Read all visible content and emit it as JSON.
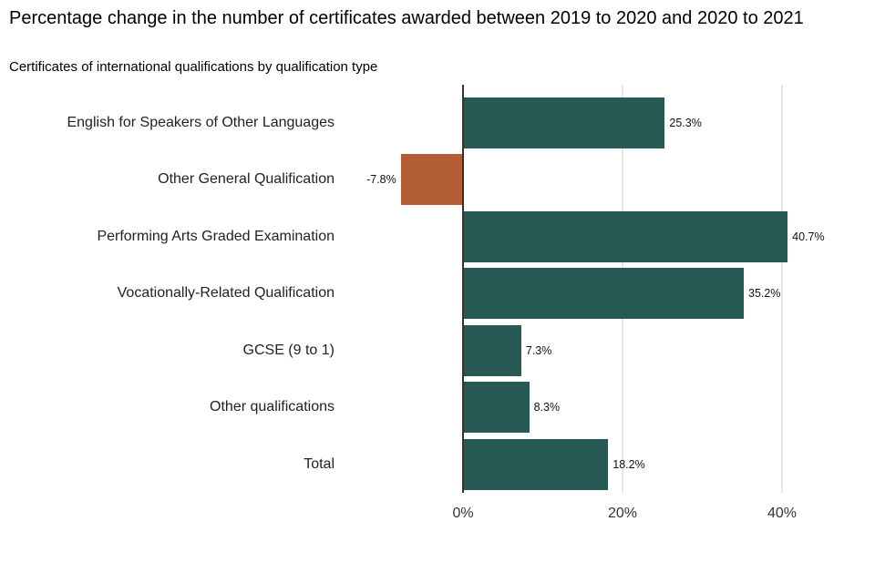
{
  "header": {
    "title": "Percentage change in the number of certificates awarded between 2019 to 2020 and 2020 to 2021",
    "subtitle": "Certificates of international qualifications by qualification type"
  },
  "colors": {
    "positive": "#275a55",
    "negative": "#b25d33",
    "grid": "#e6e6e6",
    "axis": "#333333"
  },
  "axis": {
    "ticks": [
      "0%",
      "20%",
      "40%"
    ]
  },
  "rows": [
    {
      "label": "English for Speakers of Other Languages",
      "value": 25.3,
      "value_label": "25.3%"
    },
    {
      "label": "Other General Qualification",
      "value": -7.8,
      "value_label": "-7.8%"
    },
    {
      "label": "Performing Arts Graded Examination",
      "value": 40.7,
      "value_label": "40.7%"
    },
    {
      "label": "Vocationally-Related Qualification",
      "value": 35.2,
      "value_label": "35.2%"
    },
    {
      "label": "GCSE (9 to 1)",
      "value": 7.3,
      "value_label": "7.3%"
    },
    {
      "label": "Other qualifications",
      "value": 8.3,
      "value_label": "8.3%"
    },
    {
      "label": "Total",
      "value": 18.2,
      "value_label": "18.2%"
    }
  ],
  "chart_data": {
    "type": "bar",
    "orientation": "horizontal",
    "title": "Percentage change in the number of certificates awarded between 2019 to 2020 and 2020 to 2021",
    "subtitle": "Certificates of international qualifications by qualification type",
    "categories": [
      "English for Speakers of Other Languages",
      "Other General Qualification",
      "Performing Arts Graded Examination",
      "Vocationally-Related Qualification",
      "GCSE (9 to 1)",
      "Other qualifications",
      "Total"
    ],
    "values": [
      25.3,
      -7.8,
      40.7,
      35.2,
      7.3,
      8.3,
      18.2
    ],
    "data_labels": [
      "25.3%",
      "-7.8%",
      "40.7%",
      "35.2%",
      "7.3%",
      "8.3%",
      "18.2%"
    ],
    "xlabel": "",
    "ylabel": "",
    "xticks": [
      "0%",
      "20%",
      "40%"
    ],
    "xlim": [
      -8,
      41
    ],
    "grid": "vertical major gridlines",
    "legend": "none",
    "bar_colors": {
      "positive": "#275a55",
      "negative": "#b25d33"
    }
  }
}
